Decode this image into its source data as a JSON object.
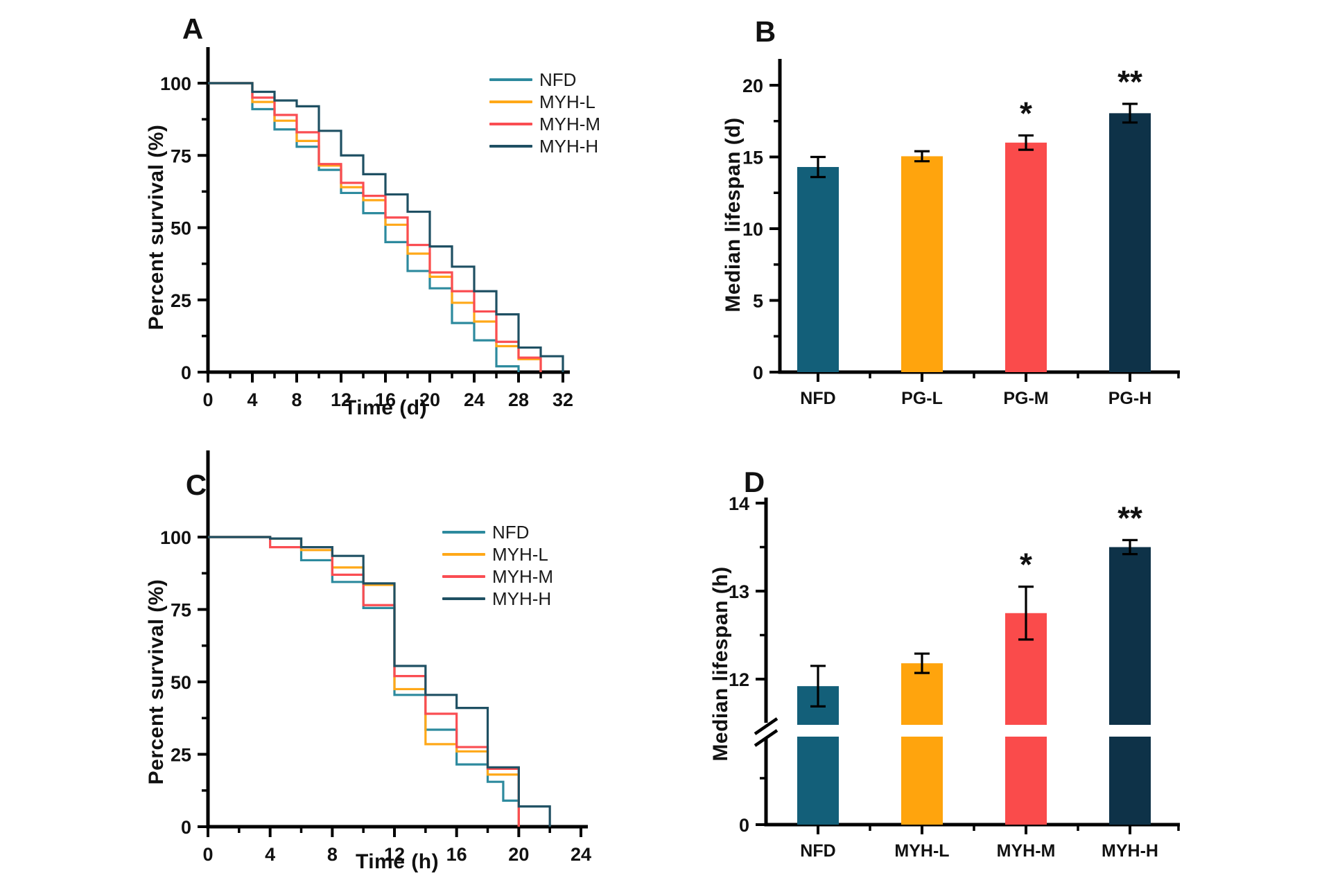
{
  "figure": {
    "background": "#ffffff",
    "axis_color": "#000000",
    "text_color": "#111111"
  },
  "chart_data": [
    {
      "panel": "A",
      "type": "line",
      "subtype": "kaplan-meier-step-survival",
      "xlabel": "Time (d)",
      "ylabel": "Percent survival (%)",
      "xlim": [
        0,
        32
      ],
      "ylim": [
        0,
        100
      ],
      "x_ticks": [
        0,
        4,
        8,
        12,
        16,
        20,
        24,
        28,
        32
      ],
      "y_ticks": [
        0,
        25,
        50,
        75,
        100
      ],
      "y_minor_ticks": [
        12.5,
        37.5,
        62.5,
        87.5
      ],
      "grid": "off",
      "legend_position": "top-right-inside",
      "series": [
        {
          "name": "NFD",
          "color": "#2D8A9E",
          "points": [
            [
              0,
              100
            ],
            [
              4,
              91
            ],
            [
              6,
              84
            ],
            [
              8,
              78
            ],
            [
              10,
              70
            ],
            [
              12,
              62
            ],
            [
              14,
              55
            ],
            [
              16,
              45
            ],
            [
              18,
              35
            ],
            [
              20,
              29
            ],
            [
              22,
              17
            ],
            [
              24,
              11
            ],
            [
              26,
              2
            ],
            [
              28,
              0
            ]
          ]
        },
        {
          "name": "MYH-L",
          "color": "#FFA818",
          "points": [
            [
              0,
              100
            ],
            [
              4,
              93.5
            ],
            [
              6,
              87
            ],
            [
              8,
              80
            ],
            [
              10,
              71.5
            ],
            [
              12,
              64
            ],
            [
              14,
              59.5
            ],
            [
              16,
              51
            ],
            [
              18,
              41
            ],
            [
              20,
              33
            ],
            [
              22,
              24
            ],
            [
              24,
              17.5
            ],
            [
              26,
              9
            ],
            [
              28,
              4.5
            ],
            [
              30,
              0
            ]
          ]
        },
        {
          "name": "MYH-M",
          "color": "#FA4D52",
          "points": [
            [
              0,
              100
            ],
            [
              4,
              95
            ],
            [
              6,
              89
            ],
            [
              8,
              83
            ],
            [
              10,
              72
            ],
            [
              12,
              65.5
            ],
            [
              14,
              61
            ],
            [
              16,
              53.5
            ],
            [
              18,
              44
            ],
            [
              20,
              34.5
            ],
            [
              22,
              28
            ],
            [
              24,
              21
            ],
            [
              26,
              10.5
            ],
            [
              28,
              5
            ],
            [
              30,
              0
            ]
          ]
        },
        {
          "name": "MYH-H",
          "color": "#1F5063",
          "points": [
            [
              0,
              100
            ],
            [
              4,
              97
            ],
            [
              6,
              94
            ],
            [
              8,
              92
            ],
            [
              10,
              83.5
            ],
            [
              12,
              75
            ],
            [
              14,
              68.5
            ],
            [
              16,
              61.5
            ],
            [
              18,
              55.5
            ],
            [
              20,
              43.5
            ],
            [
              22,
              36.5
            ],
            [
              24,
              28
            ],
            [
              26,
              20
            ],
            [
              28,
              8.5
            ],
            [
              30,
              5.5
            ],
            [
              32,
              0
            ]
          ]
        }
      ]
    },
    {
      "panel": "B",
      "type": "bar",
      "xlabel": "",
      "ylabel": "Median lifespan (d)",
      "ylim": [
        0,
        22
      ],
      "y_ticks": [
        0,
        5,
        10,
        15,
        20
      ],
      "y_minor_ticks": [
        2.5,
        7.5,
        12.5,
        17.5
      ],
      "grid": "off",
      "categories": [
        "NFD",
        "PG-L",
        "PG-M",
        "PG-H"
      ],
      "values": [
        14.3,
        15.05,
        16.0,
        18.05
      ],
      "errors": [
        0.7,
        0.35,
        0.5,
        0.65
      ],
      "significance": [
        "",
        "",
        "*",
        "**"
      ],
      "bar_colors": [
        "#135F79",
        "#FFA40D",
        "#FA4B4B",
        "#0E3248"
      ]
    },
    {
      "panel": "C",
      "type": "line",
      "subtype": "kaplan-meier-step-survival",
      "xlabel": "Time (h)",
      "ylabel": "Percent survival (%)",
      "xlim": [
        0,
        24
      ],
      "ylim": [
        0,
        100
      ],
      "x_ticks": [
        0,
        4,
        8,
        12,
        16,
        20,
        24
      ],
      "y_ticks": [
        0,
        25,
        50,
        75,
        100
      ],
      "y_minor_ticks": [
        12.5,
        37.5,
        62.5,
        87.5
      ],
      "grid": "off",
      "legend_position": "top-right-inside",
      "series": [
        {
          "name": "NFD",
          "color": "#2D8A9E",
          "points": [
            [
              0,
              100
            ],
            [
              4,
              99.5
            ],
            [
              6,
              92
            ],
            [
              8,
              84.5
            ],
            [
              10,
              75.5
            ],
            [
              12,
              45.5
            ],
            [
              14,
              33.5
            ],
            [
              16,
              21.5
            ],
            [
              18,
              15.5
            ],
            [
              19,
              9
            ],
            [
              20,
              0
            ]
          ]
        },
        {
          "name": "MYH-L",
          "color": "#FFA818",
          "points": [
            [
              0,
              100
            ],
            [
              4,
              99.5
            ],
            [
              6,
              95.5
            ],
            [
              8,
              89.5
            ],
            [
              10,
              83.5
            ],
            [
              12,
              47.5
            ],
            [
              14,
              28.5
            ],
            [
              16,
              26
            ],
            [
              18,
              18
            ],
            [
              20,
              0
            ]
          ]
        },
        {
          "name": "MYH-M",
          "color": "#FA4D52",
          "points": [
            [
              0,
              100
            ],
            [
              4,
              96.5
            ],
            [
              8,
              87
            ],
            [
              10,
              76.5
            ],
            [
              12,
              52
            ],
            [
              14,
              39
            ],
            [
              16,
              27.5
            ],
            [
              18,
              20
            ],
            [
              20,
              0
            ]
          ]
        },
        {
          "name": "MYH-H",
          "color": "#1F5063",
          "points": [
            [
              0,
              100
            ],
            [
              4,
              99.5
            ],
            [
              6,
              96.5
            ],
            [
              8,
              93.5
            ],
            [
              10,
              84
            ],
            [
              12,
              55.5
            ],
            [
              14,
              45.5
            ],
            [
              16,
              41
            ],
            [
              18,
              20.5
            ],
            [
              20,
              7
            ],
            [
              22,
              0
            ]
          ]
        }
      ]
    },
    {
      "panel": "D",
      "type": "bar",
      "axis_break": true,
      "xlabel": "",
      "ylabel": "Median lifespan (h)",
      "y_axis_upper_range": [
        11.4,
        14
      ],
      "y_ticks": [
        0,
        12,
        13,
        14
      ],
      "y_minor_ticks": [
        12.5,
        13.5
      ],
      "baseline_label": "0",
      "grid": "off",
      "categories": [
        "NFD",
        "MYH-L",
        "MYH-M",
        "MYH-H"
      ],
      "values": [
        11.92,
        12.18,
        12.75,
        13.5
      ],
      "errors": [
        0.23,
        0.11,
        0.3,
        0.08
      ],
      "significance": [
        "",
        "",
        "*",
        "**"
      ],
      "bar_colors": [
        "#135F79",
        "#FFA40D",
        "#FA4B4B",
        "#0E3248"
      ]
    }
  ]
}
